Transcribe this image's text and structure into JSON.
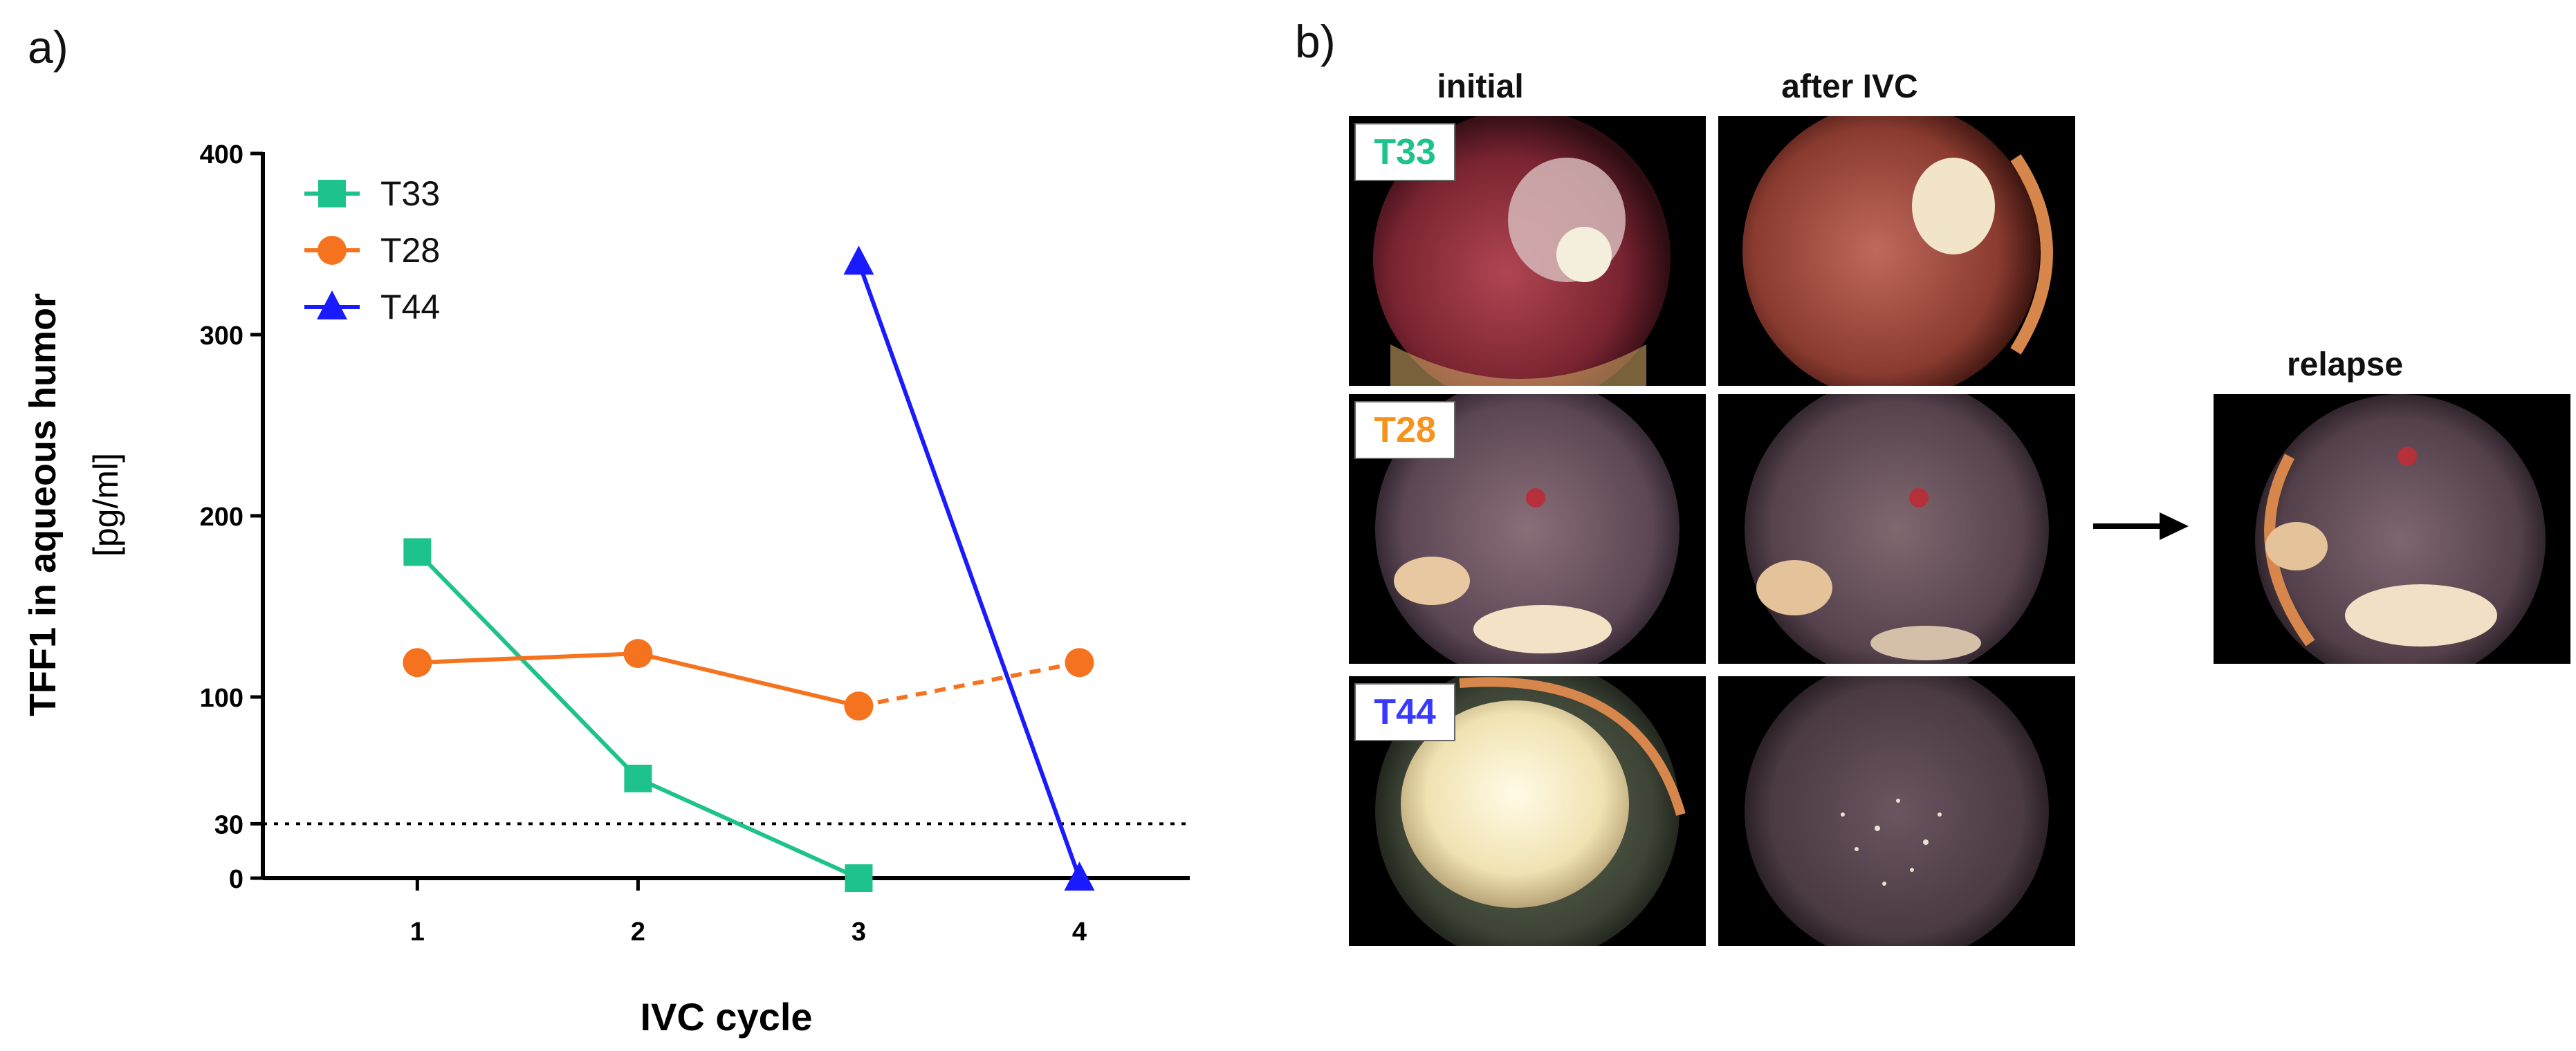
{
  "panels": {
    "a_label": "a)",
    "b_label": "b)"
  },
  "chart_data": {
    "type": "line",
    "xlabel": "IVC cycle",
    "ylabel": "TFF1 in aqueous humor",
    "ylabel_unit": "[pg/ml]",
    "x": [
      1,
      2,
      3,
      4
    ],
    "x_tick_labels": [
      "1",
      "2",
      "3",
      "4"
    ],
    "xlim": [
      0.3,
      4.5
    ],
    "ylim": [
      0,
      400
    ],
    "y_ticks": [
      0,
      30,
      100,
      200,
      300,
      400
    ],
    "y_tick_labels": [
      "0",
      "30",
      "100",
      "200",
      "300",
      "400"
    ],
    "threshold": 30,
    "legend_position": "top-left",
    "series": [
      {
        "name": "T33",
        "color": "#1dc28c",
        "marker": "square",
        "points": [
          [
            1,
            180
          ],
          [
            2,
            55
          ],
          [
            3,
            0
          ]
        ],
        "dashed_tail": false
      },
      {
        "name": "T28",
        "color": "#f5731e",
        "marker": "circle",
        "points": [
          [
            1,
            119
          ],
          [
            2,
            124
          ],
          [
            3,
            95
          ],
          [
            4,
            119
          ]
        ],
        "dashed_tail": true
      },
      {
        "name": "T44",
        "color": "#1a1aff",
        "marker": "triangle",
        "points": [
          [
            3,
            340
          ],
          [
            4,
            0
          ]
        ],
        "dashed_tail": false
      }
    ]
  },
  "images": {
    "col_initial": "initial",
    "col_after": "after IVC",
    "col_relapse": "relapse",
    "rows": [
      {
        "tag": "T33",
        "tag_color": "#1dc28c"
      },
      {
        "tag": "T28",
        "tag_color": "#f5931e"
      },
      {
        "tag": "T44",
        "tag_color": "#3a3aff"
      }
    ]
  }
}
